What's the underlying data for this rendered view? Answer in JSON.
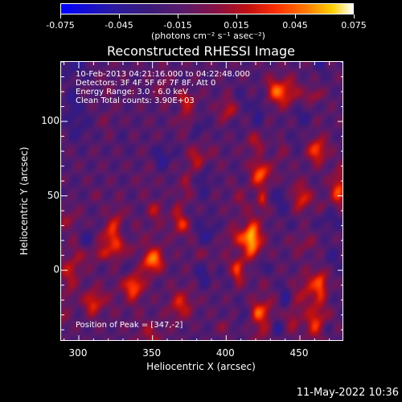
{
  "colorbar": {
    "ticks": [
      "-0.075",
      "-0.045",
      "-0.015",
      "0.015",
      "0.045",
      "0.075"
    ],
    "unit": "(photons cm⁻² s⁻¹ asec⁻²)"
  },
  "annotations": {
    "line1": "10-Feb-2013 04:21:16.000 to 04:22:48.000",
    "line2": "Detectors: 3F 4F 5F 6F 7F 8F, Att 0",
    "line3": "Energy Range: 3.0 - 6.0 keV",
    "line4": "Clean     Total counts: 3.90E+03",
    "peak": "Position of Peak = [347,-2]"
  },
  "datestamp": "11-May-2022 10:36",
  "chart_data": {
    "type": "heatmap",
    "title": "Reconstructed RHESSI Image",
    "xlabel": "Heliocentric X (arcsec)",
    "ylabel": "Heliocentric Y (arcsec)",
    "x_ticks": [
      300,
      350,
      400,
      450
    ],
    "y_ticks": [
      0,
      50,
      100
    ],
    "xlim": [
      288,
      480
    ],
    "ylim": [
      -48,
      140
    ],
    "colorbar_range": [
      -0.075,
      0.075
    ],
    "peak_position": [
      347,
      -2
    ]
  }
}
